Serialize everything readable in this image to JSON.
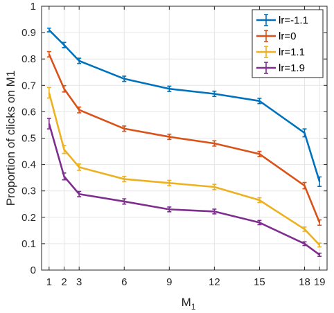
{
  "chart_data": {
    "type": "line",
    "xlabel": "M",
    "xlabel_sub": "1",
    "ylabel": "Proportion of clicks on M1",
    "xlim": [
      0.5,
      19.5
    ],
    "ylim": [
      0,
      1
    ],
    "xticks": [
      1,
      2,
      3,
      6,
      9,
      12,
      15,
      18,
      19
    ],
    "xtick_labels": [
      "1",
      "2",
      "3",
      "6",
      "9",
      "12",
      "15",
      "18",
      "19"
    ],
    "yticks": [
      0,
      0.1,
      0.2,
      0.3,
      0.4,
      0.5,
      0.6,
      0.7,
      0.8,
      0.9,
      1
    ],
    "ytick_labels": [
      "0",
      "0.1",
      "0.2",
      "0.3",
      "0.4",
      "0.5",
      "0.6",
      "0.7",
      "0.8",
      "0.9",
      "1"
    ],
    "grid": true,
    "legend_position": "top-right",
    "x": [
      1,
      2,
      3,
      6,
      9,
      12,
      15,
      18,
      19
    ],
    "series": [
      {
        "name": "lr=-1.1",
        "color": "#0072BD",
        "values": [
          0.91,
          0.853,
          0.793,
          0.725,
          0.687,
          0.668,
          0.641,
          0.52,
          0.335
        ],
        "errors": [
          0.007,
          0.01,
          0.01,
          0.01,
          0.01,
          0.01,
          0.01,
          0.015,
          0.018
        ]
      },
      {
        "name": "lr=0",
        "color": "#D95319",
        "values": [
          0.818,
          0.687,
          0.607,
          0.536,
          0.505,
          0.48,
          0.44,
          0.32,
          0.18
        ],
        "errors": [
          0.01,
          0.012,
          0.011,
          0.01,
          0.01,
          0.01,
          0.01,
          0.012,
          0.01
        ]
      },
      {
        "name": "lr=1.1",
        "color": "#EDB120",
        "values": [
          0.672,
          0.457,
          0.39,
          0.345,
          0.33,
          0.315,
          0.265,
          0.155,
          0.095
        ],
        "errors": [
          0.02,
          0.015,
          0.012,
          0.01,
          0.01,
          0.01,
          0.009,
          0.008,
          0.007
        ]
      },
      {
        "name": "lr=1.9",
        "color": "#7E2F8E",
        "values": [
          0.555,
          0.355,
          0.288,
          0.26,
          0.23,
          0.222,
          0.18,
          0.1,
          0.058
        ],
        "errors": [
          0.02,
          0.013,
          0.01,
          0.01,
          0.009,
          0.009,
          0.008,
          0.007,
          0.006
        ]
      }
    ]
  }
}
